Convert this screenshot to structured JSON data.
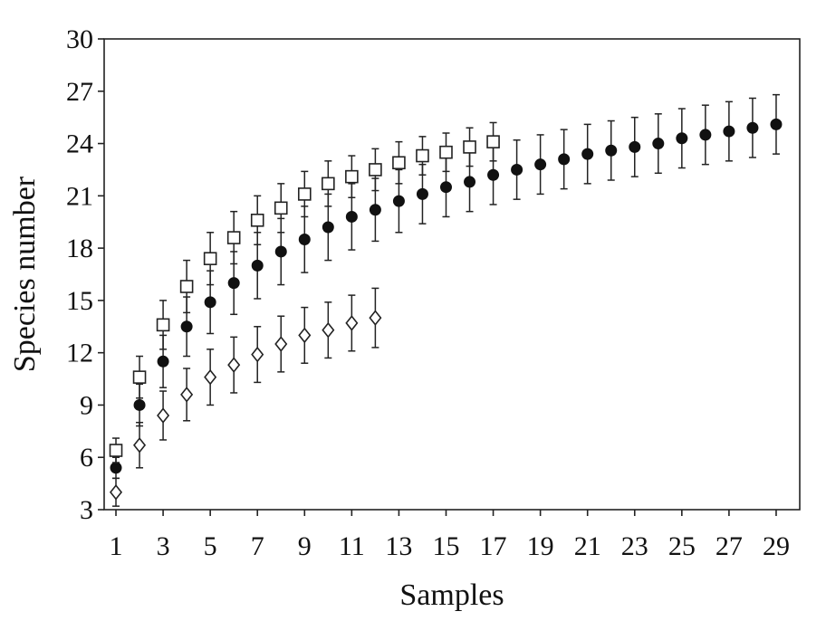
{
  "chart_data": {
    "type": "scatter",
    "title": "",
    "xlabel": "Samples",
    "ylabel": "Species number",
    "xlim": [
      0.5,
      30
    ],
    "ylim": [
      3,
      30
    ],
    "xticks": [
      1,
      3,
      5,
      7,
      9,
      11,
      13,
      15,
      17,
      19,
      21,
      23,
      25,
      27,
      29
    ],
    "yticks": [
      3,
      6,
      9,
      12,
      15,
      18,
      21,
      24,
      27,
      30
    ],
    "grid": false,
    "legend": "none",
    "series": [
      {
        "marker": "filled-circle",
        "x": [
          1,
          2,
          3,
          4,
          5,
          6,
          7,
          8,
          9,
          10,
          11,
          12,
          13,
          14,
          15,
          16,
          17,
          18,
          19,
          20,
          21,
          22,
          23,
          24,
          25,
          26,
          27,
          28,
          29
        ],
        "y": [
          5.4,
          9.0,
          11.5,
          13.5,
          14.9,
          16.0,
          17.0,
          17.8,
          18.5,
          19.2,
          19.8,
          20.2,
          20.7,
          21.1,
          21.5,
          21.8,
          22.2,
          22.5,
          22.8,
          23.1,
          23.4,
          23.6,
          23.8,
          24.0,
          24.3,
          24.5,
          24.7,
          24.9,
          25.1
        ],
        "err": [
          0.6,
          1.2,
          1.5,
          1.7,
          1.8,
          1.8,
          1.9,
          1.9,
          1.9,
          1.9,
          1.9,
          1.8,
          1.8,
          1.7,
          1.7,
          1.7,
          1.7,
          1.7,
          1.7,
          1.7,
          1.7,
          1.7,
          1.7,
          1.7,
          1.7,
          1.7,
          1.7,
          1.7,
          1.7
        ]
      },
      {
        "marker": "open-square",
        "x": [
          1,
          2,
          3,
          4,
          5,
          6,
          7,
          8,
          9,
          10,
          11,
          12,
          13,
          14,
          15,
          16,
          17
        ],
        "y": [
          6.4,
          10.6,
          13.6,
          15.8,
          17.4,
          18.6,
          19.6,
          20.3,
          21.1,
          21.7,
          22.1,
          22.5,
          22.9,
          23.3,
          23.5,
          23.8,
          24.1
        ],
        "err": [
          0.7,
          1.2,
          1.4,
          1.5,
          1.5,
          1.5,
          1.4,
          1.4,
          1.3,
          1.3,
          1.2,
          1.2,
          1.2,
          1.1,
          1.1,
          1.1,
          1.1
        ]
      },
      {
        "marker": "open-diamond",
        "x": [
          1,
          2,
          3,
          4,
          5,
          6,
          7,
          8,
          9,
          10,
          11,
          12
        ],
        "y": [
          4.0,
          6.7,
          8.4,
          9.6,
          10.6,
          11.3,
          11.9,
          12.5,
          13.0,
          13.3,
          13.7,
          14.0
        ],
        "err": [
          0.8,
          1.3,
          1.4,
          1.5,
          1.6,
          1.6,
          1.6,
          1.6,
          1.6,
          1.6,
          1.6,
          1.7
        ]
      }
    ]
  }
}
